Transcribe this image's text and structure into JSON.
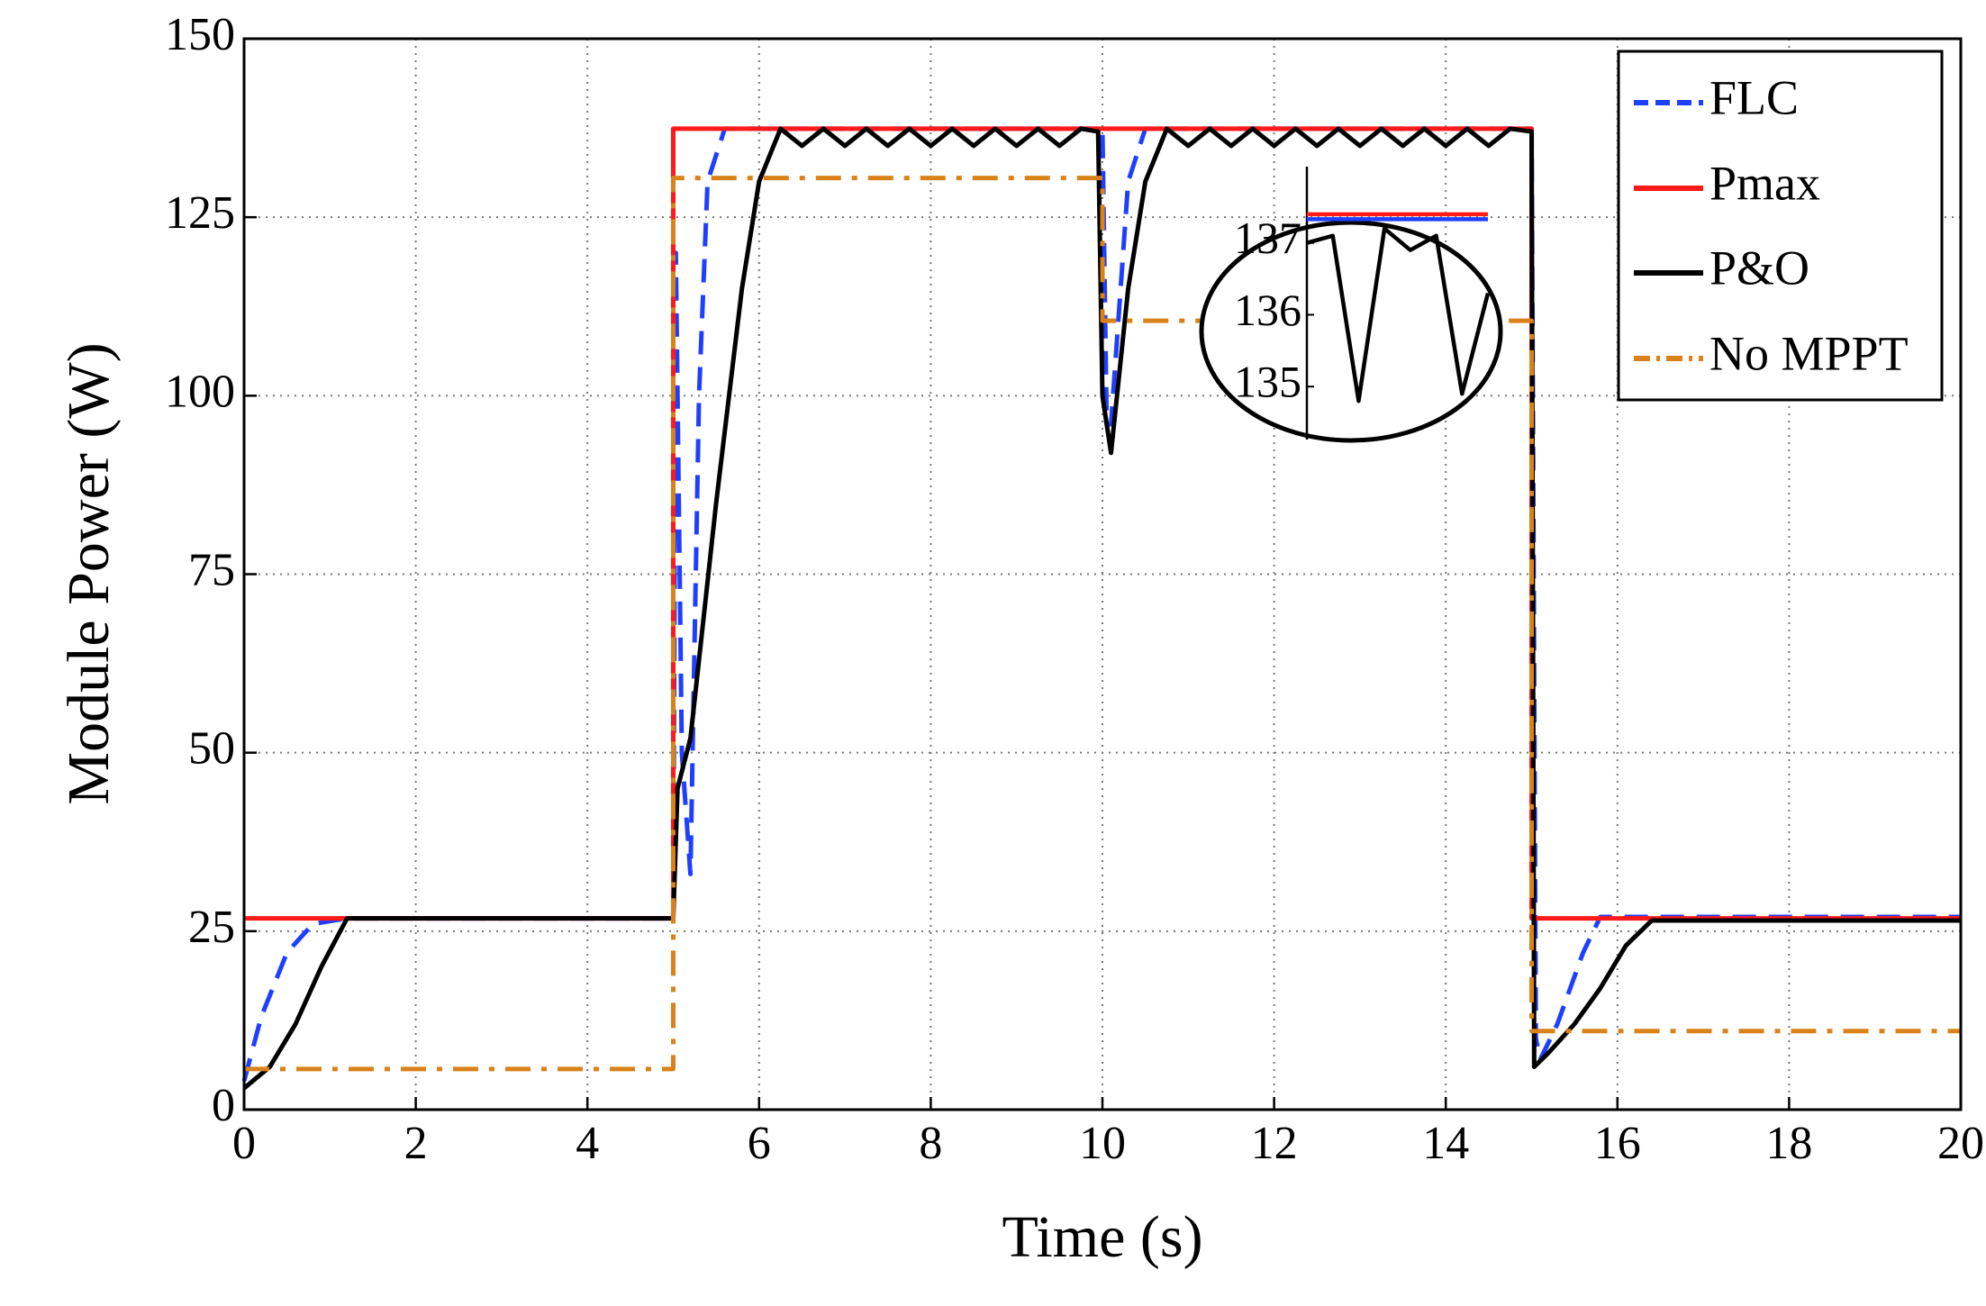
{
  "chart_data": [
    {
      "type": "line",
      "x_label": "Time (s)",
      "y_label": "Module Power (W)",
      "xlim": [
        0,
        20
      ],
      "xticks": [
        0,
        2,
        4,
        6,
        8,
        10,
        12,
        14,
        16,
        18,
        20
      ],
      "ylim": [
        0,
        150
      ],
      "yticks": [
        0,
        25,
        50,
        75,
        100,
        125,
        150
      ],
      "grid": true,
      "legend": "upper right",
      "series": [
        {
          "name": "FLC",
          "color": "#1f3fff",
          "style": "dashed",
          "x": [
            0,
            0.2,
            0.5,
            0.8,
            1.2,
            5,
            5.03,
            5.1,
            5.2,
            5.3,
            5.4,
            5.6,
            10,
            10.05,
            10.1,
            10.3,
            10.5,
            15,
            15.05,
            15.1,
            15.3,
            15.6,
            15.8,
            20
          ],
          "values": [
            4,
            13,
            22,
            26,
            26.8,
            26.8,
            120,
            50,
            33,
            100,
            130,
            137.4,
            137.4,
            96,
            96,
            130,
            137.4,
            137.4,
            10,
            7,
            12,
            22,
            27,
            27
          ]
        },
        {
          "name": "Pmax",
          "color": "#ff1a1a",
          "style": "solid",
          "x": [
            0,
            5,
            5,
            15,
            15,
            20
          ],
          "values": [
            26.8,
            26.8,
            137.4,
            137.4,
            26.8,
            26.8
          ]
        },
        {
          "name": "P&O",
          "color": "#000000",
          "style": "solid",
          "x": [
            0,
            0.3,
            0.6,
            0.9,
            1.2,
            5,
            5.05,
            5.2,
            5.5,
            5.8,
            6.0,
            6.25,
            6.5,
            6.75,
            7,
            7.25,
            7.5,
            7.75,
            8,
            8.25,
            8.5,
            8.75,
            9,
            9.25,
            9.5,
            9.75,
            9.95,
            10.0,
            10.1,
            10.3,
            10.5,
            10.75,
            11,
            11.25,
            11.5,
            11.75,
            12,
            12.25,
            12.5,
            12.75,
            13,
            13.25,
            13.5,
            13.75,
            14,
            14.25,
            14.5,
            14.75,
            15,
            15.03,
            15.2,
            15.5,
            15.8,
            16.1,
            16.4,
            20
          ],
          "values": [
            3,
            6,
            12,
            20,
            26.8,
            26.8,
            45,
            52,
            85,
            115,
            130,
            137.4,
            135,
            137.4,
            135,
            137.4,
            135,
            137.4,
            135,
            137.4,
            135,
            137.4,
            135,
            137.4,
            135,
            137.4,
            137,
            100,
            92,
            115,
            130,
            137.4,
            135,
            137.4,
            135,
            137.4,
            135,
            137.4,
            135,
            137.4,
            135,
            137.4,
            135,
            137.4,
            135,
            137.4,
            135,
            137.4,
            137,
            6,
            8,
            12,
            17,
            23,
            26.5,
            26.5
          ]
        },
        {
          "name": "No MPPT",
          "color": "#d9821a",
          "style": "dashdot",
          "x": [
            0,
            5,
            5,
            10,
            10,
            15,
            15,
            20
          ],
          "values": [
            5.7,
            5.7,
            130.5,
            130.5,
            110.5,
            110.5,
            11,
            11
          ]
        }
      ]
    },
    {
      "type": "line",
      "categories": [
        null,
        null,
        null,
        null,
        null,
        null,
        null,
        null
      ],
      "ylim": [
        134.2,
        138.1
      ],
      "yticks": [
        135,
        136,
        137
      ],
      "series": [
        {
          "color": "#ff1a1a",
          "style": "solid",
          "values": [
            137.4,
            137.4,
            137.4,
            137.4,
            137.4,
            137.4,
            137.4,
            137.4
          ]
        },
        {
          "color": "#1f3fff",
          "style": "solid",
          "values": [
            137.33,
            137.33,
            137.33,
            137.33,
            137.33,
            137.33,
            137.33,
            137.33
          ]
        },
        {
          "color": "#000000",
          "style": "solid",
          "values": [
            137.0,
            137.1,
            134.8,
            137.2,
            136.9,
            137.1,
            134.9,
            136.3
          ]
        }
      ]
    }
  ]
}
